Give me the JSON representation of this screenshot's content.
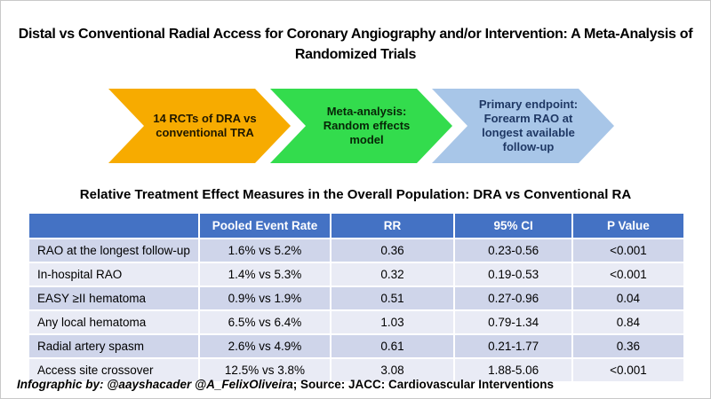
{
  "slide": {
    "title": "Distal vs Conventional Radial Access for Coronary Angiography and/or Intervention: A Meta-Analysis of Randomized Trials"
  },
  "flow_steps": [
    {
      "label": "14 RCTs of DRA vs conventional TRA",
      "fill": "#F7AB00",
      "text_color": "#201800"
    },
    {
      "label": "Meta-analysis: Random effects model",
      "fill": "#33DC4D",
      "text_color": "#072607"
    },
    {
      "label": "Primary endpoint: Forearm RAO at longest available follow-up",
      "fill": "#A8C6E8",
      "text_color": "#1F3864"
    }
  ],
  "table": {
    "title": "Relative Treatment Effect Measures in the Overall Population: DRA vs Conventional RA",
    "columns": [
      "",
      "Pooled Event Rate",
      "RR",
      "95% CI",
      "P Value"
    ],
    "rows": [
      [
        "RAO at the longest follow-up",
        "1.6% vs 5.2%",
        "0.36",
        "0.23-0.56",
        "<0.001"
      ],
      [
        "In-hospital RAO",
        "1.4% vs 5.3%",
        "0.32",
        "0.19-0.53",
        "<0.001"
      ],
      [
        "EASY ≥II hematoma",
        "0.9% vs 1.9%",
        "0.51",
        "0.27-0.96",
        "0.04"
      ],
      [
        "Any local hematoma",
        "6.5% vs 6.4%",
        "1.03",
        "0.79-1.34",
        "0.84"
      ],
      [
        "Radial artery spasm",
        "2.6% vs 4.9%",
        "0.61",
        "0.21-1.77",
        "0.36"
      ],
      [
        "Access site crossover",
        "12.5% vs 3.8%",
        "3.08",
        "1.88-5.06",
        "<0.001"
      ]
    ],
    "colors": {
      "header_bg": "#4472C4",
      "header_text": "#FFFFFF",
      "row_odd_bg": "#CFD5EA",
      "row_even_bg": "#E9EBF5"
    }
  },
  "footer": {
    "credit": "Infographic by:",
    "handles": "@aayshacader @A_FelixOliveira",
    "source": "; Source: JACC: Cardiovascular Interventions"
  }
}
